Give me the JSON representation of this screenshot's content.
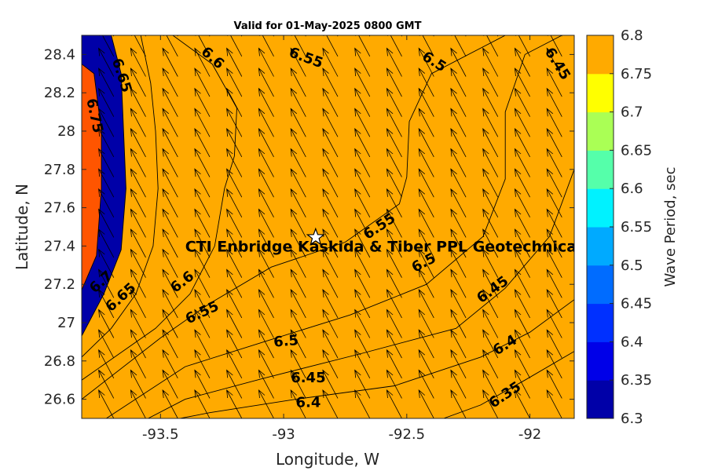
{
  "chart_data": {
    "type": "heatmap",
    "subtype": "filled-contour-with-vectors",
    "title": "Valid for 01-May-2025 0800 GMT",
    "xlabel": "Longitude, W",
    "ylabel": "Latitude, N",
    "xlim": [
      -93.82,
      -91.82
    ],
    "ylim": [
      26.5,
      28.5
    ],
    "x_ticks": [
      -93.5,
      -93,
      -92.5,
      -92
    ],
    "x_tick_labels": [
      "-93.5",
      "-93",
      "-92.5",
      "-92"
    ],
    "y_ticks": [
      26.6,
      26.8,
      27,
      27.2,
      27.4,
      27.6,
      27.8,
      28,
      28.2,
      28.4
    ],
    "y_tick_labels": [
      "26.6",
      "26.8",
      "27",
      "27.2",
      "27.4",
      "27.6",
      "27.8",
      "28",
      "28.2",
      "28.4"
    ],
    "colorbar": {
      "label": "Wave Period, sec",
      "levels": [
        6.3,
        6.35,
        6.4,
        6.45,
        6.5,
        6.55,
        6.6,
        6.65,
        6.7,
        6.75,
        6.8
      ],
      "tick_labels": [
        "6.3",
        "6.35",
        "6.4",
        "6.45",
        "6.5",
        "6.55",
        "6.6",
        "6.65",
        "6.7",
        "6.75",
        "6.8"
      ],
      "colors": [
        "#0000a8",
        "#0000e8",
        "#0030ff",
        "#006cff",
        "#00aaff",
        "#00f2ff",
        "#55ffaa",
        "#aaff55",
        "#ffff00",
        "#ffaa00",
        "#ff5500"
      ]
    },
    "contour_lines": [
      {
        "level": "6.75",
        "points": [
          [
            -93.82,
            28.35
          ],
          [
            -93.77,
            28.3
          ],
          [
            -93.74,
            28.0
          ],
          [
            -93.74,
            27.7
          ],
          [
            -93.76,
            27.35
          ],
          [
            -93.82,
            27.17
          ]
        ]
      },
      {
        "level": "6.7",
        "points": [
          [
            -93.7,
            28.5
          ],
          [
            -93.66,
            28.3
          ],
          [
            -93.65,
            28.0
          ],
          [
            -93.64,
            27.7
          ],
          [
            -93.66,
            27.38
          ],
          [
            -93.73,
            27.15
          ],
          [
            -93.82,
            26.93
          ]
        ]
      },
      {
        "level": "6.65",
        "points": [
          [
            -93.58,
            28.5
          ],
          [
            -93.54,
            28.25
          ],
          [
            -93.52,
            28.0
          ],
          [
            -93.51,
            27.7
          ],
          [
            -93.53,
            27.4
          ],
          [
            -93.6,
            27.15
          ],
          [
            -93.7,
            26.97
          ],
          [
            -93.82,
            26.82
          ]
        ]
      },
      {
        "level": "6.6",
        "points": [
          [
            -93.45,
            28.5
          ],
          [
            -93.29,
            28.35
          ],
          [
            -93.19,
            28.12
          ],
          [
            -93.2,
            27.87
          ],
          [
            -93.24,
            27.7
          ],
          [
            -93.28,
            27.4
          ],
          [
            -93.38,
            27.15
          ],
          [
            -93.52,
            26.97
          ],
          [
            -93.82,
            26.7
          ]
        ]
      },
      {
        "level": "6.55",
        "points": [
          [
            -92.1,
            28.5
          ],
          [
            -92.4,
            28.3
          ],
          [
            -92.49,
            28.05
          ],
          [
            -92.5,
            27.76
          ],
          [
            -92.53,
            27.62
          ],
          [
            -92.75,
            27.42
          ],
          [
            -93.05,
            27.29
          ],
          [
            -93.3,
            27.1
          ],
          [
            -93.5,
            26.92
          ],
          [
            -93.82,
            26.6
          ]
        ]
      },
      {
        "level": "6.5",
        "points": [
          [
            -91.87,
            28.5
          ],
          [
            -92.02,
            28.4
          ],
          [
            -92.1,
            28.1
          ],
          [
            -92.1,
            27.75
          ],
          [
            -92.19,
            27.45
          ],
          [
            -92.42,
            27.2
          ],
          [
            -92.73,
            27.04
          ],
          [
            -93.08,
            26.9
          ],
          [
            -93.4,
            26.77
          ],
          [
            -93.72,
            26.5
          ]
        ]
      },
      {
        "level": "6.45",
        "points": [
          [
            -91.82,
            27.8
          ],
          [
            -91.92,
            27.45
          ],
          [
            -92.1,
            27.18
          ],
          [
            -92.3,
            26.97
          ],
          [
            -92.68,
            26.84
          ],
          [
            -93.08,
            26.71
          ],
          [
            -93.4,
            26.6
          ],
          [
            -93.55,
            26.5
          ]
        ]
      },
      {
        "level": "6.4",
        "points": [
          [
            -91.82,
            27.12
          ],
          [
            -92.0,
            26.95
          ],
          [
            -92.2,
            26.82
          ],
          [
            -92.55,
            26.67
          ],
          [
            -92.95,
            26.6
          ],
          [
            -93.3,
            26.53
          ],
          [
            -93.42,
            26.5
          ]
        ]
      },
      {
        "level": "6.35",
        "points": [
          [
            -91.82,
            26.85
          ],
          [
            -92.02,
            26.7
          ],
          [
            -92.2,
            26.57
          ],
          [
            -92.35,
            26.5
          ]
        ]
      }
    ],
    "contour_labels": [
      {
        "text": "6.75",
        "x": -93.77,
        "y": 28.08,
        "angle": 78
      },
      {
        "text": "6.7",
        "x": -93.74,
        "y": 27.21,
        "angle": -42
      },
      {
        "text": "6.65",
        "x": -93.66,
        "y": 28.29,
        "angle": 72
      },
      {
        "text": "6.65",
        "x": -93.66,
        "y": 27.13,
        "angle": -42
      },
      {
        "text": "6.6",
        "x": -93.29,
        "y": 28.38,
        "angle": 42
      },
      {
        "text": "6.6",
        "x": -93.41,
        "y": 27.21,
        "angle": -38
      },
      {
        "text": "6.55",
        "x": -92.91,
        "y": 28.38,
        "angle": 20
      },
      {
        "text": "6.55",
        "x": -92.61,
        "y": 27.5,
        "angle": -34
      },
      {
        "text": "6.55",
        "x": -93.33,
        "y": 27.05,
        "angle": -25
      },
      {
        "text": "6.5",
        "x": -92.39,
        "y": 28.36,
        "angle": 32
      },
      {
        "text": "6.5",
        "x": -92.43,
        "y": 27.31,
        "angle": -28
      },
      {
        "text": "6.5",
        "x": -92.99,
        "y": 26.9,
        "angle": -5
      },
      {
        "text": "6.45",
        "x": -91.89,
        "y": 28.35,
        "angle": 58
      },
      {
        "text": "6.45",
        "x": -92.15,
        "y": 27.17,
        "angle": -36
      },
      {
        "text": "6.45",
        "x": -92.9,
        "y": 26.71,
        "angle": 0
      },
      {
        "text": "6.4",
        "x": -92.1,
        "y": 26.88,
        "angle": -32
      },
      {
        "text": "6.4",
        "x": -92.9,
        "y": 26.58,
        "angle": 0
      },
      {
        "text": "6.35",
        "x": -92.1,
        "y": 26.62,
        "angle": -34
      }
    ],
    "vector_field": {
      "x_start": -93.82,
      "x_step": 0.13,
      "x_count": 16,
      "y_start": 26.5,
      "y_step": 0.105,
      "y_count": 20,
      "direction_deg": 118,
      "length": 0.13
    },
    "annotations": [
      {
        "text": "CTI Enbridge  Kaskida & Tiber PPL Geotechnical",
        "x": -93.4,
        "y": 27.37
      }
    ],
    "markers": [
      {
        "type": "star",
        "x": -92.87,
        "y": 27.445
      }
    ]
  }
}
